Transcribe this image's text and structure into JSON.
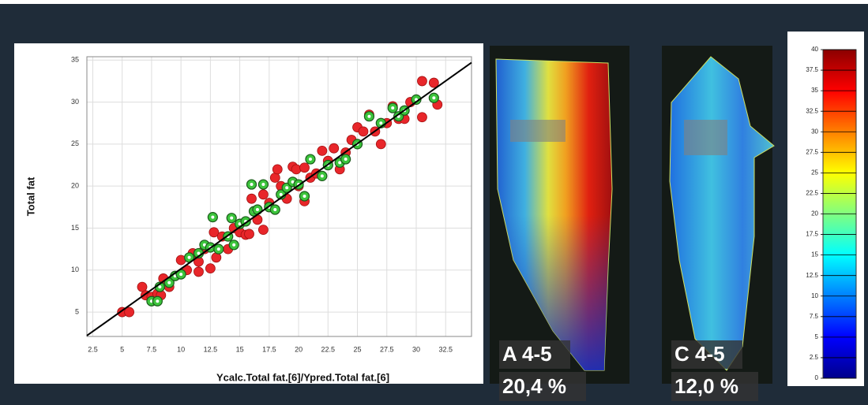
{
  "chart_data": [
    {
      "type": "scatter",
      "xlabel": "Ycalc.Total fat.[6]/Ypred.Total fat.[6]",
      "ylabel": "Total fat",
      "xlim": [
        2,
        34.7
      ],
      "ylim": [
        2.1,
        35.4
      ],
      "xticks": [
        2.5,
        5,
        7.5,
        10,
        12.5,
        15,
        17.5,
        20,
        22.5,
        25,
        27.5,
        30,
        32.5
      ],
      "yticks": [
        5,
        10,
        15,
        20,
        25,
        30,
        35
      ],
      "grid": true,
      "fit_line": {
        "x": [
          2,
          34.7
        ],
        "y": [
          2.2,
          34.7
        ],
        "color": "#000000"
      },
      "series": [
        {
          "color": "#e8262a",
          "x": [
            5,
            5.6,
            6.7,
            7,
            7.5,
            8,
            8.5,
            8.3,
            9,
            10,
            10.5,
            11,
            11.5,
            12,
            12.5,
            12.8,
            13.5,
            14,
            14.5,
            15,
            15.5,
            16,
            16.5,
            17,
            17.5,
            18,
            18.2,
            18.5,
            19,
            19.5,
            20,
            20.5,
            21,
            21.5,
            22,
            22.5,
            23,
            23.5,
            24,
            24.5,
            25,
            25.5,
            26,
            26.5,
            27,
            27.5,
            28,
            28.5,
            29,
            29.5,
            30.5,
            30.5,
            31.5,
            31.8,
            17,
            15.8,
            13,
            11.5,
            19.8,
            20.5
          ],
          "y": [
            5,
            5,
            8,
            7,
            6.8,
            7.2,
            9,
            7,
            8,
            11.2,
            10,
            12,
            11,
            12.5,
            10.2,
            14.5,
            14,
            12.5,
            15,
            14.5,
            14.2,
            18.5,
            16,
            19,
            18,
            21,
            22,
            20,
            18.5,
            22.3,
            20,
            18.2,
            21,
            21.5,
            24.2,
            23,
            24.5,
            22,
            24,
            25.5,
            27,
            26.5,
            28.5,
            26.5,
            25,
            27.5,
            29.5,
            28,
            28,
            30,
            32.5,
            28.2,
            32.3,
            29.7,
            14.8,
            14.3,
            11.5,
            9.8,
            22,
            22.2
          ]
        },
        {
          "color": "#3cc43c",
          "x": [
            7.5,
            8,
            8.2,
            9,
            9.5,
            10,
            10.7,
            11.5,
            12,
            12.5,
            12.7,
            13.2,
            14,
            14.3,
            14.5,
            15,
            15.5,
            16,
            16.2,
            16.5,
            17,
            17.5,
            18,
            18.5,
            19,
            19.5,
            20,
            20.5,
            21,
            22,
            22.5,
            23.5,
            24,
            25,
            26,
            27,
            28,
            28.5,
            29,
            30,
            31.5
          ],
          "y": [
            6.3,
            6.3,
            8,
            8.5,
            9.3,
            9.5,
            11.5,
            12,
            13,
            12.7,
            16.3,
            12.5,
            14,
            16.2,
            13,
            15.5,
            15.8,
            20.2,
            17,
            17.2,
            20.2,
            17.5,
            17.2,
            19,
            19.8,
            20.5,
            20.2,
            18.8,
            23.2,
            21.2,
            22.5,
            22.8,
            23.2,
            25,
            28.3,
            27.5,
            29.3,
            28.3,
            29,
            30.3,
            30.5
          ]
        }
      ]
    },
    {
      "type": "colorbar",
      "ylim": [
        0,
        40
      ],
      "yticks": [
        0,
        2.5,
        5,
        7.5,
        10,
        12.5,
        15,
        17.5,
        20,
        22.5,
        25,
        27.5,
        30,
        32.5,
        35,
        37.5,
        40
      ],
      "colors": [
        "#00008b",
        "#0000ff",
        "#0080ff",
        "#00ffff",
        "#80ff80",
        "#ffff00",
        "#ff8000",
        "#ff0000",
        "#8b0000"
      ]
    }
  ],
  "images": [
    {
      "label": "A 4-5",
      "value": "20,4 %"
    },
    {
      "label": "C 4-5",
      "value": "12,0 %"
    }
  ]
}
